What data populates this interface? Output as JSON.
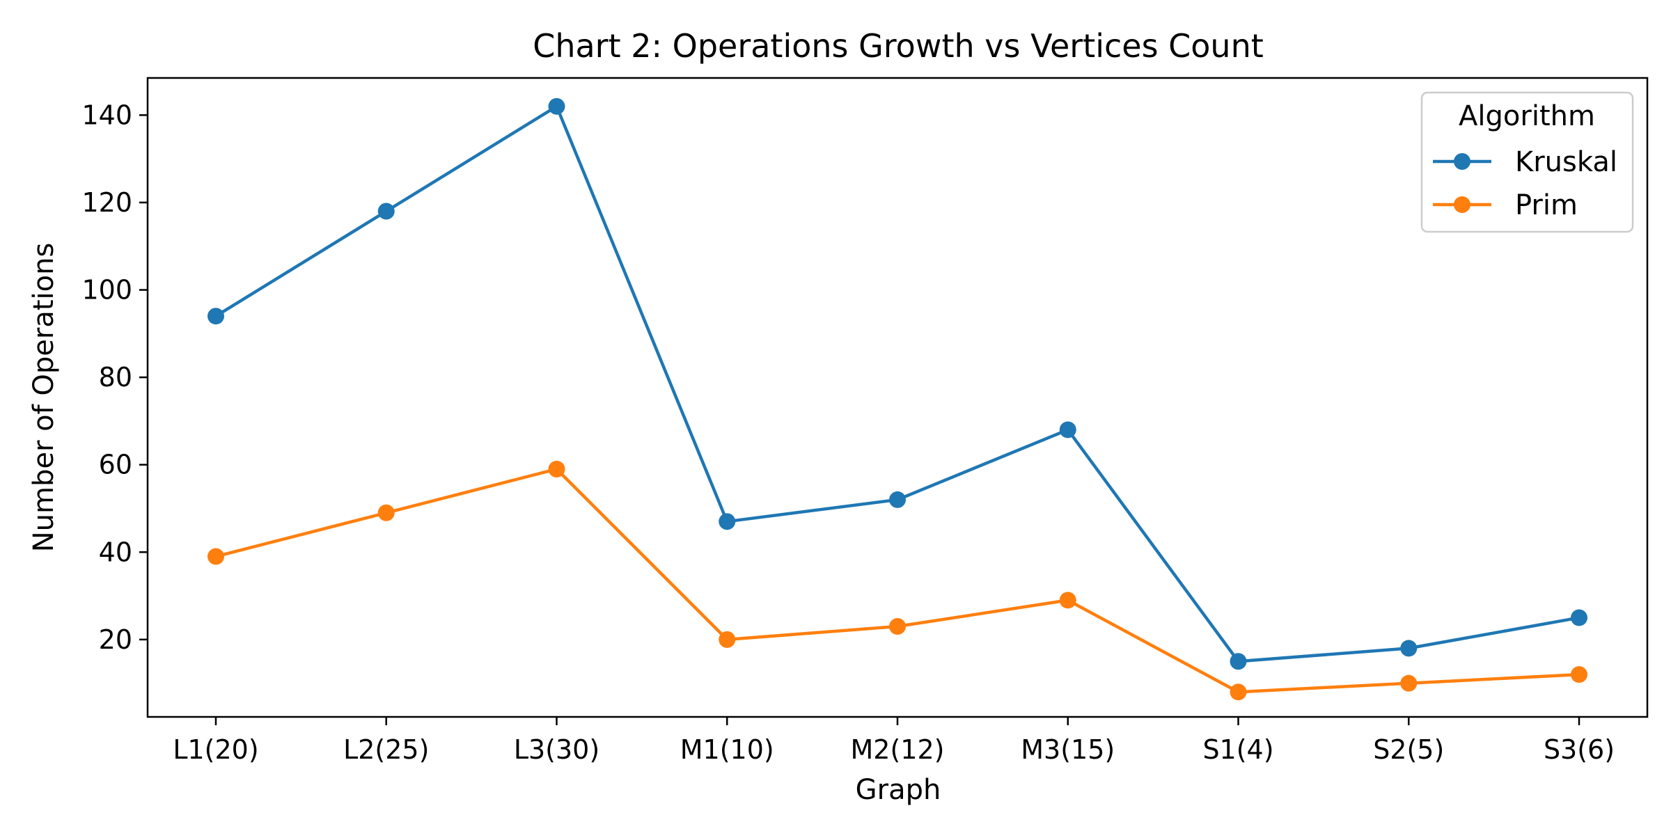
{
  "chart_data": {
    "type": "line",
    "title": "Chart 2: Operations Growth vs Vertices Count",
    "xlabel": "Graph",
    "ylabel": "Number of Operations",
    "categories": [
      "L1(20)",
      "L2(25)",
      "L3(30)",
      "M1(10)",
      "M2(12)",
      "M3(15)",
      "S1(4)",
      "S2(5)",
      "S3(6)"
    ],
    "yticks": [
      20,
      40,
      60,
      80,
      100,
      120,
      140
    ],
    "ylim": [
      2.3,
      148.5
    ],
    "grid": false,
    "legend": {
      "title": "Algorithm",
      "placement": "top-right"
    },
    "series": [
      {
        "name": "Kruskal",
        "color": "#1f77b4",
        "marker": "circle",
        "values": [
          94,
          118,
          142,
          47,
          52,
          68,
          15,
          18,
          25
        ]
      },
      {
        "name": "Prim",
        "color": "#ff7f0e",
        "marker": "circle",
        "values": [
          39,
          49,
          59,
          20,
          23,
          29,
          8,
          10,
          12
        ]
      }
    ]
  }
}
